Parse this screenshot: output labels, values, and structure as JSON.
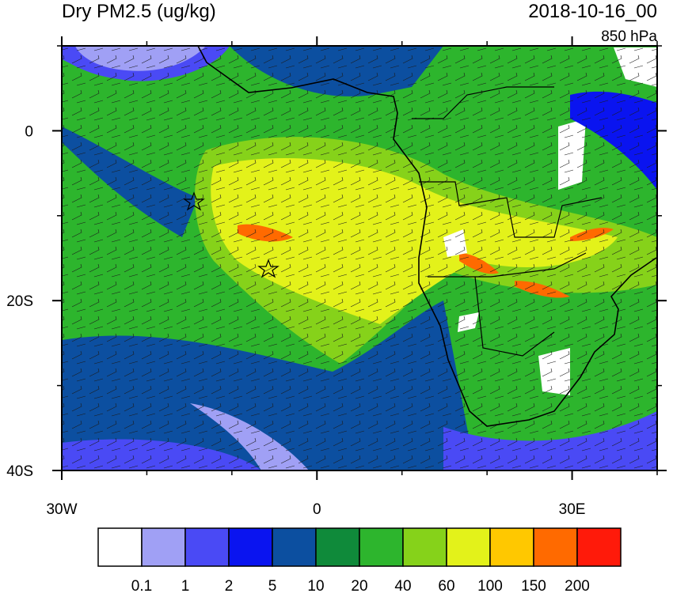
{
  "map": {
    "title": "Dry PM2.5 (ug/kg)",
    "time": "2018-10-16_00",
    "level": "850 hPa",
    "lat_range": [
      -40,
      10
    ],
    "lon_range": [
      -30,
      40
    ],
    "lat_ticks": [
      {
        "value": 0,
        "label": "0"
      },
      {
        "value": -20,
        "label": "20S"
      },
      {
        "value": -40,
        "label": "40S"
      }
    ],
    "lat_minor_ticks": [
      10,
      -10,
      -30
    ],
    "lon_ticks": [
      {
        "value": -30,
        "label": "30W"
      },
      {
        "value": 0,
        "label": "0"
      },
      {
        "value": 30,
        "label": "30E"
      }
    ],
    "lon_minor_ticks": [
      -20,
      -10,
      10,
      20,
      40
    ],
    "colorbar": {
      "colors": [
        "#ffffff",
        "#a0a0f5",
        "#4a4af5",
        "#0a14f0",
        "#0c4fa0",
        "#0f8a3a",
        "#2db52d",
        "#86d21a",
        "#e3f21a",
        "#ffc800",
        "#ff6a00",
        "#ff1a0a"
      ],
      "levels": [
        0.1,
        1,
        2,
        5,
        10,
        20,
        40,
        60,
        100,
        150,
        200
      ]
    }
  }
}
